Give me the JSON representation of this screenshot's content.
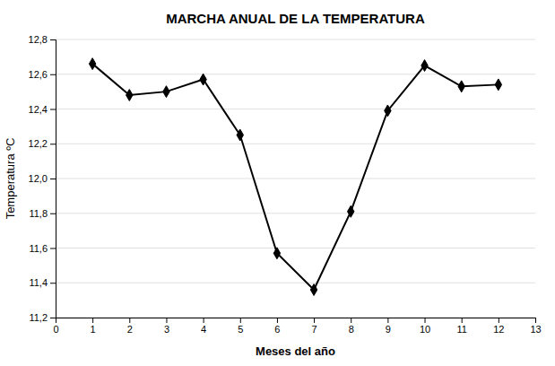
{
  "chart_data": {
    "type": "line",
    "title": "MARCHA ANUAL DE LA TEMPERATURA",
    "xlabel": "Meses del año",
    "ylabel": "Temperatura ºC",
    "x": [
      1,
      2,
      3,
      4,
      5,
      6,
      7,
      8,
      9,
      10,
      11,
      12
    ],
    "values": [
      12.66,
      12.48,
      12.5,
      12.57,
      12.25,
      11.57,
      11.36,
      11.81,
      12.39,
      12.65,
      12.53,
      12.54
    ],
    "color": "#000000",
    "marker": "diamond",
    "xlim": [
      0,
      13
    ],
    "ylim": [
      11.2,
      12.8
    ],
    "xticks": [
      0,
      1,
      2,
      3,
      4,
      5,
      6,
      7,
      8,
      9,
      10,
      11,
      12,
      13
    ],
    "yticks": [
      {
        "value": 11.2,
        "label": "11,2"
      },
      {
        "value": 11.4,
        "label": "11,4"
      },
      {
        "value": 11.6,
        "label": "11,6"
      },
      {
        "value": 11.8,
        "label": "11,8"
      },
      {
        "value": 12.0,
        "label": "12,0"
      },
      {
        "value": 12.2,
        "label": "12,2"
      },
      {
        "value": 12.4,
        "label": "12,4"
      },
      {
        "value": 12.6,
        "label": "12,6"
      },
      {
        "value": 12.8,
        "label": "12,8"
      }
    ],
    "grid": "y"
  }
}
